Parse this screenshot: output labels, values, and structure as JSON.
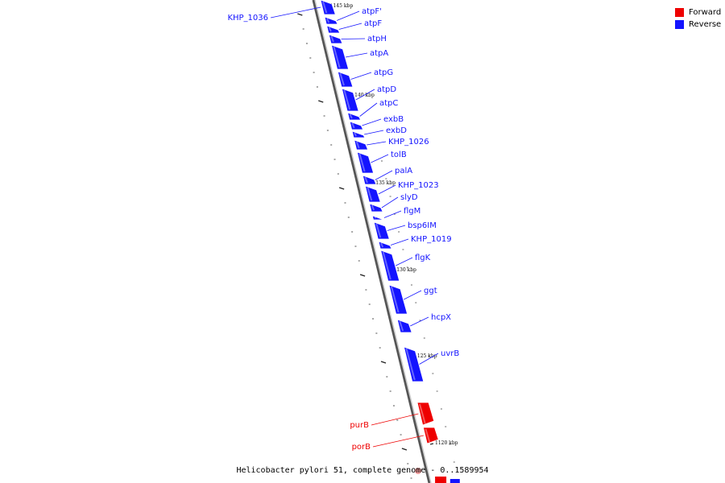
{
  "caption": "Helicobacter pylori 51, complete genome - 0..1589954",
  "legend": [
    {
      "label": "Forward",
      "color": "#ee0000"
    },
    {
      "label": "Reverse",
      "color": "#1414ff"
    }
  ],
  "tick_labels": [
    "1145 kbp",
    "1140 kbp",
    "1135 kbp",
    "1130 kbp",
    "1125 kbp",
    "1120 kbp"
  ],
  "genes": [
    {
      "name": "KHP_1036",
      "strand": "reverse"
    },
    {
      "name": "atpF'",
      "strand": "reverse"
    },
    {
      "name": "atpF",
      "strand": "reverse"
    },
    {
      "name": "atpH",
      "strand": "reverse"
    },
    {
      "name": "atpA",
      "strand": "reverse"
    },
    {
      "name": "atpG",
      "strand": "reverse"
    },
    {
      "name": "atpD",
      "strand": "reverse"
    },
    {
      "name": "atpC",
      "strand": "reverse"
    },
    {
      "name": "exbB",
      "strand": "reverse"
    },
    {
      "name": "exbD",
      "strand": "reverse"
    },
    {
      "name": "KHP_1026",
      "strand": "reverse"
    },
    {
      "name": "tolB",
      "strand": "reverse"
    },
    {
      "name": "palA",
      "strand": "reverse"
    },
    {
      "name": "KHP_1023",
      "strand": "reverse"
    },
    {
      "name": "slyD",
      "strand": "reverse"
    },
    {
      "name": "flgM",
      "strand": "reverse"
    },
    {
      "name": "bsp6IM",
      "strand": "reverse"
    },
    {
      "name": "KHP_1019",
      "strand": "reverse"
    },
    {
      "name": "flgK",
      "strand": "reverse"
    },
    {
      "name": "ggt",
      "strand": "reverse"
    },
    {
      "name": "hcpX",
      "strand": "reverse"
    },
    {
      "name": "uvrB",
      "strand": "reverse"
    },
    {
      "name": "purB",
      "strand": "forward"
    },
    {
      "name": "porB",
      "strand": "forward"
    }
  ]
}
